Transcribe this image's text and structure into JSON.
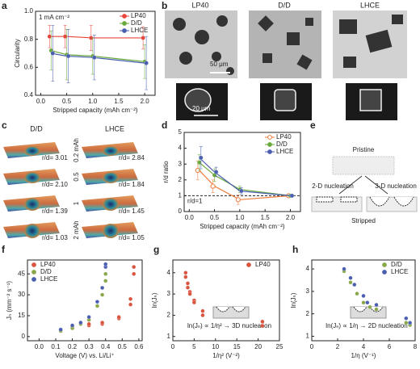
{
  "panel_labels": [
    "a",
    "b",
    "c",
    "d",
    "e",
    "f",
    "g",
    "h"
  ],
  "micrographs": {
    "labels": [
      "LP40",
      "D/D",
      "LHCE"
    ],
    "scale_bars": [
      "50 μm",
      "20 μm"
    ]
  },
  "surfaces": {
    "columns": [
      "D/D",
      "LHCE"
    ],
    "capacities": [
      "0.2 mAh",
      "0.5",
      "1",
      "2 mAh"
    ],
    "ratios": [
      [
        "r/d= 3.01",
        "r/d= 2.84"
      ],
      [
        "r/d= 2.10",
        "r/d= 1.84"
      ],
      [
        "r/d= 1.39",
        "r/d= 1.45"
      ],
      [
        "r/d= 1.03",
        "r/d= 1.05"
      ]
    ]
  },
  "schematic": {
    "top": "Pristine",
    "left": "2-D nucleation",
    "right": "3-D nucleation",
    "bottom": "Stripped"
  },
  "chart_data": [
    {
      "type": "line",
      "xlabel": "Stripped capacity (mAh cm⁻²)",
      "ylabel": "Circularity",
      "annotations": [
        "1 mA cm⁻²"
      ],
      "x": [
        0.2,
        0.5,
        1,
        2
      ],
      "xlim": [
        -0.1,
        2.2
      ],
      "xticks": [
        {
          "value": 0,
          "label": "0.0"
        },
        0.5,
        {
          "value": 1,
          "label": "1.0"
        },
        1.5,
        {
          "value": 2,
          "label": "2.0"
        }
      ],
      "ylim": [
        0.4,
        1.0
      ],
      "yticks": [
        0.4,
        0.6,
        0.8,
        {
          "value": 1,
          "label": "1.0"
        }
      ],
      "legend": "upper right",
      "series": [
        {
          "name": "LP40",
          "color": "#e8453c",
          "values": [
            0.82,
            0.82,
            0.81,
            0.81
          ],
          "errors": [
            0.08,
            0.08,
            0.09,
            0.08
          ]
        },
        {
          "name": "D/D",
          "color": "#6aaa3a",
          "values": [
            0.72,
            0.69,
            0.68,
            0.64
          ],
          "errors": [
            0.14,
            0.18,
            0.13,
            0.12
          ]
        },
        {
          "name": "LHCE",
          "color": "#4a5fb0",
          "values": [
            0.7,
            0.68,
            0.67,
            0.63
          ],
          "errors": [
            0.2,
            0.19,
            0.16,
            0.19
          ]
        }
      ]
    },
    {
      "type": "line",
      "xlabel": "Stripped capacity (mAh cm⁻²)",
      "ylabel": "r/d ratio",
      "annotations": [
        "r/d=1"
      ],
      "hline": 1,
      "x": [
        0.2,
        0.5,
        1,
        2
      ],
      "xlim": [
        -0.1,
        2.2
      ],
      "xticks": [
        {
          "value": 0,
          "label": "0.0"
        },
        0.5,
        {
          "value": 1,
          "label": "1.0"
        },
        1.5,
        {
          "value": 2,
          "label": "2.0"
        }
      ],
      "ylim": [
        0,
        5
      ],
      "yticks": [
        0,
        1,
        2,
        3,
        4,
        5
      ],
      "legend": "upper right",
      "series": [
        {
          "name": "LP40",
          "color": "#f07a3a",
          "marker": "open",
          "values": [
            2.6,
            1.6,
            0.75,
            1.0
          ],
          "errors": [
            0.6,
            0.4,
            0.3,
            0.05
          ]
        },
        {
          "name": "D/D",
          "color": "#6aaa3a",
          "values": [
            3.1,
            2.3,
            1.4,
            1.0
          ],
          "errors": [
            0.5,
            0.4,
            0.2,
            0.05
          ]
        },
        {
          "name": "LHCE",
          "color": "#4a5fb0",
          "values": [
            3.4,
            2.5,
            1.3,
            1.0
          ],
          "errors": [
            0.7,
            0.3,
            0.2,
            0.05
          ]
        }
      ]
    },
    {
      "type": "scatter",
      "xlabel": "Voltage (V) vs. Li/Li⁺",
      "ylabel": "Jₙ (mm⁻² s⁻¹)",
      "annotations": [],
      "xlim": [
        -0.07,
        0.62
      ],
      "xticks": [
        {
          "value": 0,
          "label": "0.0"
        },
        0.1,
        0.2,
        0.3,
        0.4,
        0.5,
        0.6
      ],
      "ylim": [
        -3,
        55
      ],
      "yticks": [
        0,
        15,
        30,
        45
      ],
      "legend": "upper left",
      "series": [
        {
          "name": "LP40",
          "color": "#d9553f",
          "x": [
            0.13,
            0.13,
            0.2,
            0.2,
            0.3,
            0.3,
            0.38,
            0.38,
            0.48,
            0.48,
            0.55,
            0.55,
            0.57,
            0.57
          ],
          "values": [
            4,
            5,
            6,
            7,
            8,
            9,
            9,
            10,
            13,
            14,
            23,
            27,
            45,
            50
          ]
        },
        {
          "name": "D/D",
          "color": "#8aa84a",
          "x": [
            0.13,
            0.2,
            0.25,
            0.3,
            0.35,
            0.38,
            0.4,
            0.4
          ],
          "values": [
            4,
            6,
            9,
            12,
            22,
            30,
            40,
            45
          ]
        },
        {
          "name": "LHCE",
          "color": "#4a5fb0",
          "x": [
            0.13,
            0.2,
            0.25,
            0.3,
            0.35,
            0.38,
            0.4,
            0.4
          ],
          "values": [
            5,
            8,
            10,
            14,
            25,
            35,
            50,
            52
          ]
        }
      ]
    },
    {
      "type": "scatter",
      "xlabel": "1/η² (V⁻²)",
      "ylabel": "ln(Jₙ)",
      "annotations": [
        "ln(Jₙ) ∝ 1/η² → 3D nucleation"
      ],
      "xlim": [
        0,
        25
      ],
      "xticks": [
        0,
        5,
        10,
        15,
        20,
        25
      ],
      "ylim": [
        0.8,
        4.6
      ],
      "yticks": [
        1,
        2,
        3,
        4
      ],
      "legend": "upper right",
      "series": [
        {
          "name": "LP40",
          "color": "#d9553f",
          "x": [
            3,
            3,
            3.5,
            3.5,
            4,
            4,
            5,
            5,
            7,
            7,
            21,
            21
          ],
          "values": [
            4.0,
            3.8,
            3.5,
            3.3,
            3.1,
            3.0,
            2.7,
            2.6,
            2.2,
            2.0,
            1.7,
            1.5
          ]
        }
      ]
    },
    {
      "type": "scatter",
      "xlabel": "1/η (V⁻¹)",
      "ylabel": "ln(Jₙ)",
      "annotations": [
        "ln(Jₙ) ∝ 1/η → 2D nucleation"
      ],
      "xlim": [
        0,
        8
      ],
      "xticks": [
        0,
        2,
        4,
        6,
        8
      ],
      "ylim": [
        0.8,
        4.4
      ],
      "yticks": [
        1,
        2,
        3,
        4
      ],
      "legend": "upper right",
      "series": [
        {
          "name": "D/D",
          "color": "#8aa84a",
          "x": [
            2.5,
            3,
            3.5,
            4,
            4.5,
            5,
            7.3,
            7.6
          ],
          "values": [
            3.9,
            3.4,
            2.9,
            2.5,
            2.3,
            2.2,
            1.6,
            1.5
          ]
        },
        {
          "name": "LHCE",
          "color": "#4a5fb0",
          "x": [
            2.5,
            3,
            3.3,
            4,
            4.3,
            5,
            7.3,
            7.6
          ],
          "values": [
            4.0,
            3.6,
            3.3,
            2.8,
            2.5,
            2.4,
            1.8,
            1.6
          ]
        }
      ]
    }
  ]
}
